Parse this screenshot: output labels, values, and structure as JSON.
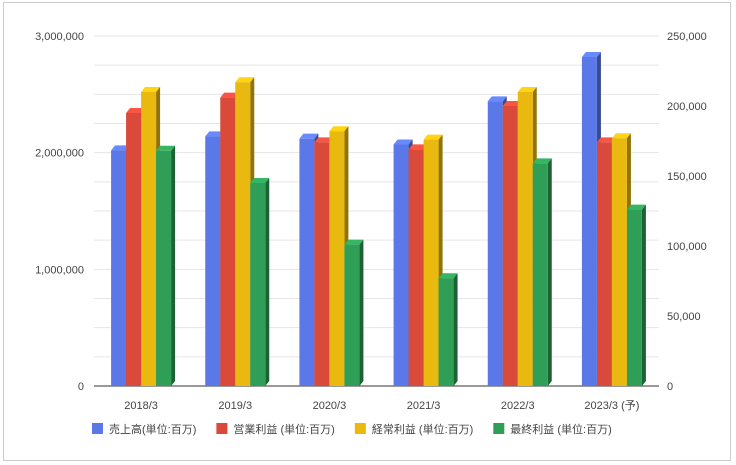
{
  "chart_data": {
    "type": "bar",
    "style": "3d",
    "categories": [
      "2018/3",
      "2019/3",
      "2020/3",
      "2021/3",
      "2022/3",
      "2023/3 (予)"
    ],
    "series": [
      {
        "name": "売上高(単位:百万)",
        "axis": "left",
        "color": "#5b78e8",
        "values": [
          2020000,
          2140000,
          2120000,
          2070000,
          2440000,
          2820000
        ]
      },
      {
        "name": "営業利益 (単位:百万)",
        "axis": "right",
        "color": "#d94a3a",
        "values": [
          195000,
          206000,
          174000,
          169000,
          200000,
          174000
        ]
      },
      {
        "name": "経常利益 (単位:百万)",
        "axis": "right",
        "color": "#e9b90f",
        "values": [
          210000,
          217000,
          182000,
          176000,
          210000,
          177000
        ]
      },
      {
        "name": "最終利益 (単位:百万)",
        "axis": "right",
        "color": "#2f9e56",
        "values": [
          168000,
          145000,
          101000,
          77000,
          159000,
          126000
        ]
      }
    ],
    "y_left": {
      "lim": [
        0,
        3000000
      ],
      "ticks": [
        "0",
        "1,000,000",
        "2,000,000",
        "3,000,000"
      ]
    },
    "y_right": {
      "lim": [
        0,
        250000
      ],
      "ticks": [
        "0",
        "50,000",
        "100,000",
        "150,000",
        "200,000",
        "250,000"
      ]
    },
    "grid": true,
    "legend": "bottom"
  }
}
